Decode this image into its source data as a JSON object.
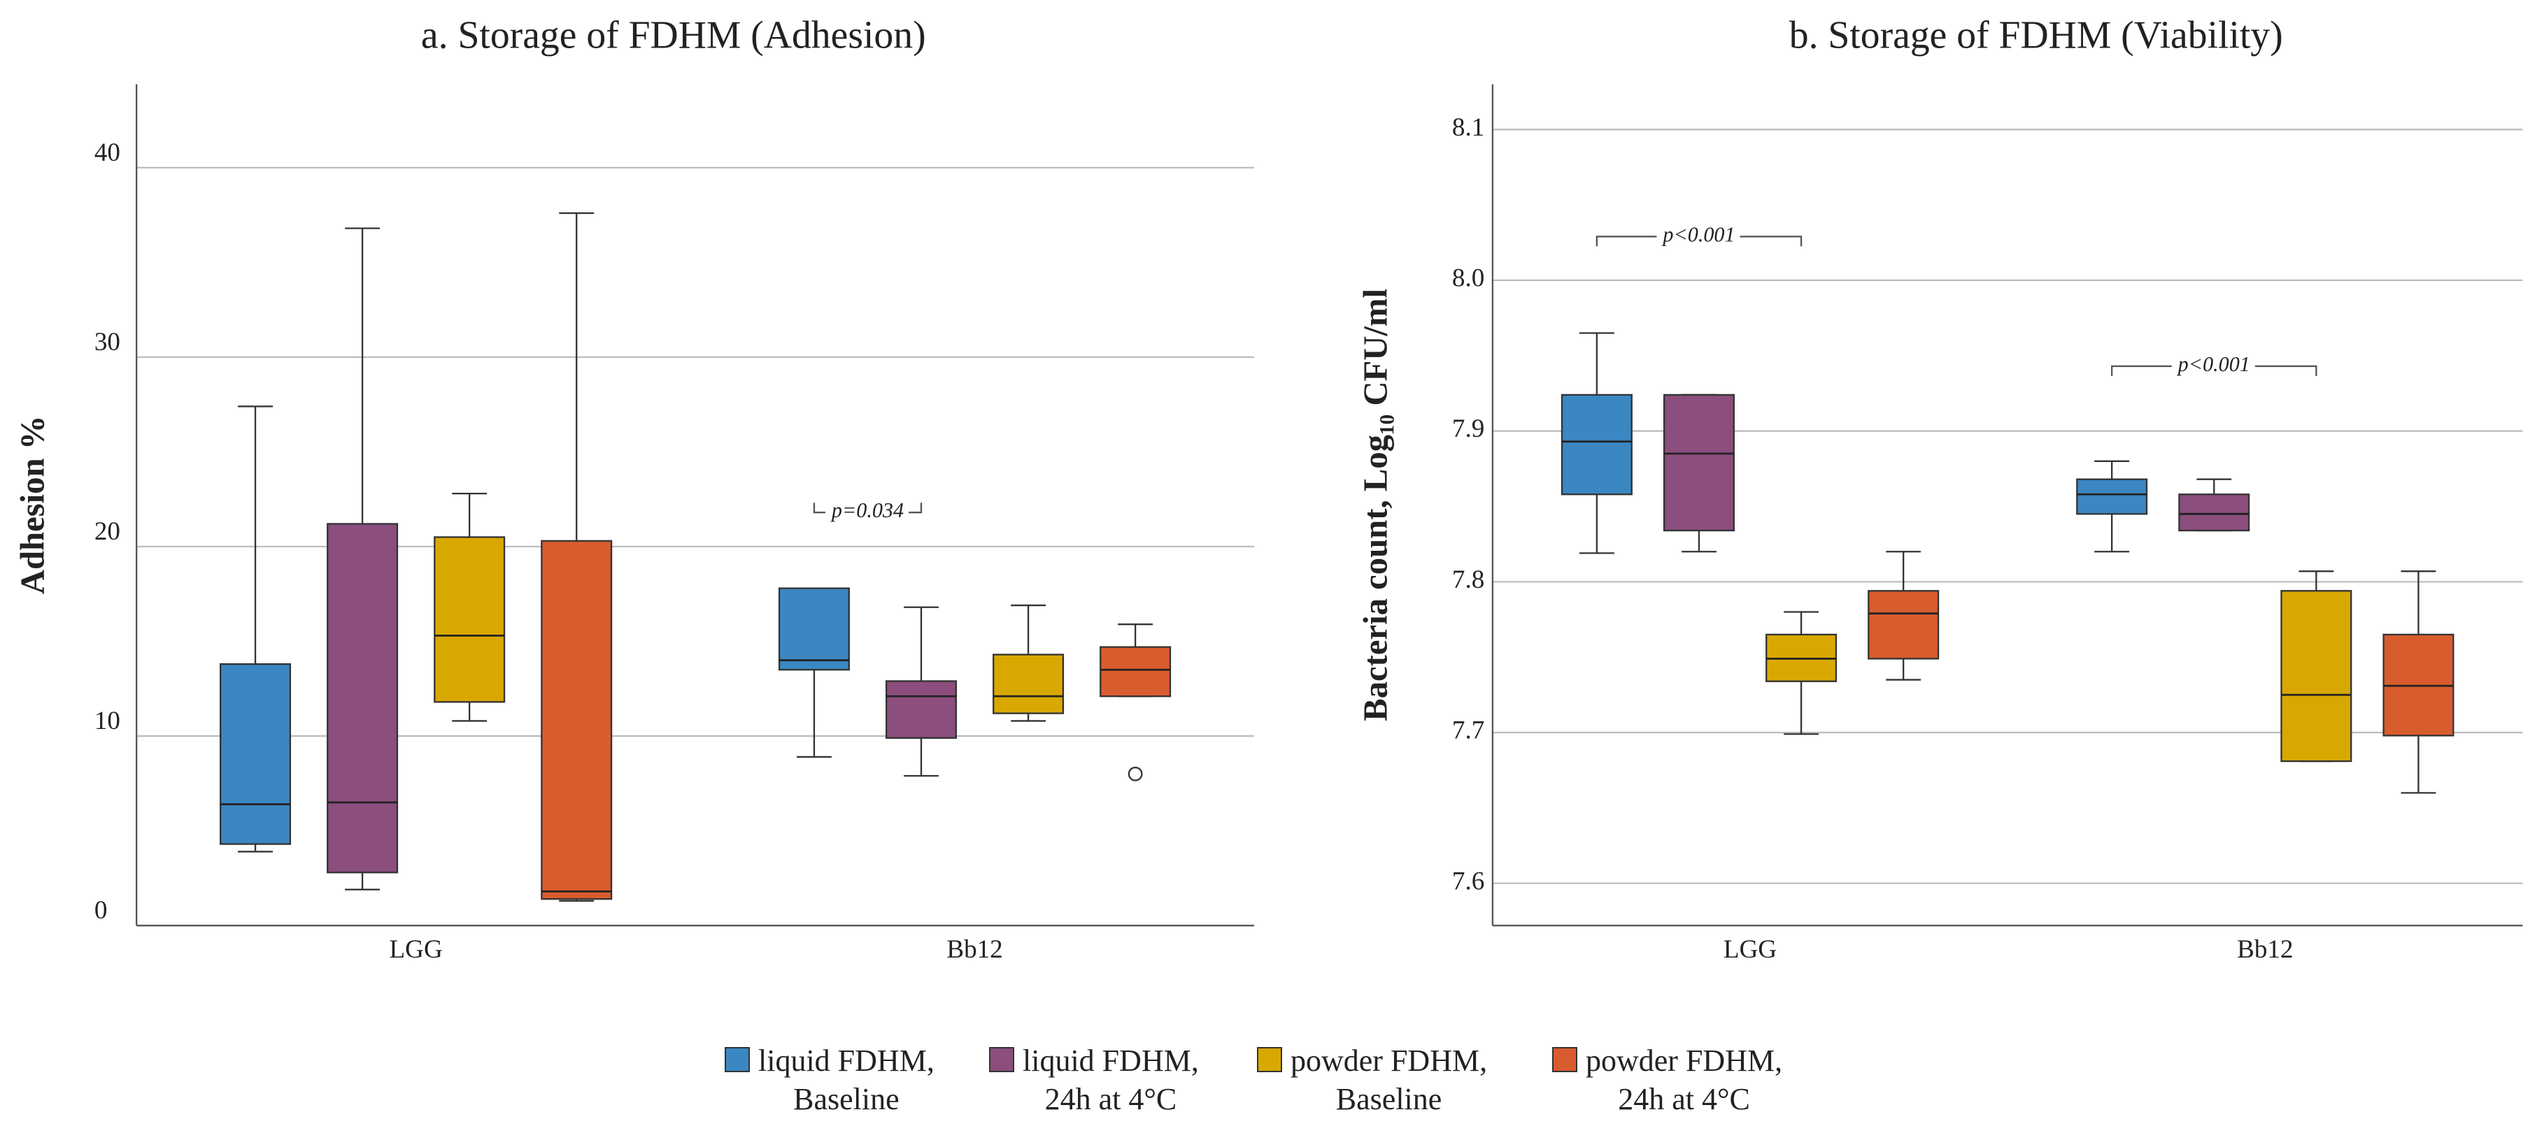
{
  "chart_data": [
    {
      "type": "box",
      "title": "a. Storage of FDHM (Adhesion)",
      "y_label": "Adhesion %",
      "categories": [
        "LGG",
        "Bb12"
      ],
      "ylim": [
        0,
        44.4
      ],
      "yticks": [
        0,
        10,
        20,
        30,
        40
      ],
      "grid": true,
      "series": [
        {
          "name": "liquid FDHM,\nBaseline",
          "color": "#3a87c2",
          "boxes": [
            {
              "min": 3.9,
              "q1": 4.3,
              "median": 6.4,
              "q3": 13.8,
              "max": 27.4,
              "outliers": []
            },
            {
              "min": 8.9,
              "q1": 13.5,
              "median": 14.0,
              "q3": 17.8,
              "max": 17.8,
              "outliers": []
            }
          ]
        },
        {
          "name": "liquid FDHM,\n24h at 4°C",
          "color": "#8b4e7d",
          "boxes": [
            {
              "min": 1.9,
              "q1": 2.8,
              "median": 6.5,
              "q3": 21.2,
              "max": 36.8,
              "outliers": []
            },
            {
              "min": 7.9,
              "q1": 9.9,
              "median": 12.1,
              "q3": 12.9,
              "max": 16.8,
              "outliers": []
            }
          ]
        },
        {
          "name": "powder FDHM,\nBaseline",
          "color": "#d9a800",
          "boxes": [
            {
              "min": 10.8,
              "q1": 11.8,
              "median": 15.3,
              "q3": 20.5,
              "max": 22.8,
              "outliers": []
            },
            {
              "min": 10.8,
              "q1": 11.2,
              "median": 12.1,
              "q3": 14.3,
              "max": 16.9,
              "outliers": []
            }
          ]
        },
        {
          "name": "powder FDHM,\n24h at 4°C",
          "color": "#d95c2e",
          "boxes": [
            {
              "min": 1.3,
              "q1": 1.4,
              "median": 1.8,
              "q3": 20.3,
              "max": 37.6,
              "outliers": []
            },
            {
              "min": 12.1,
              "q1": 12.1,
              "median": 13.5,
              "q3": 14.7,
              "max": 15.9,
              "outliers": [
                8.0
              ]
            }
          ]
        }
      ],
      "annotations": [
        {
          "text": "p=0.034",
          "category": "Bb12",
          "y": 21.8
        }
      ]
    },
    {
      "type": "box",
      "title": "b. Storage of FDHM (Viability)",
      "y_label": "Bacteria count, Log₁₀ CFU/ml",
      "categories": [
        "LGG",
        "Bb12"
      ],
      "ylim": [
        7.572,
        8.13
      ],
      "yticks": [
        7.6,
        7.7,
        7.8,
        7.9,
        {
          "value": 8.0,
          "label": "8.0"
        },
        8.1
      ],
      "grid": true,
      "series": [
        {
          "color": "#3a87c2",
          "boxes": [
            {
              "min": 7.819,
              "q1": 7.858,
              "median": 7.893,
              "q3": 7.924,
              "max": 7.965,
              "outliers": []
            },
            {
              "min": 7.82,
              "q1": 7.845,
              "median": 7.858,
              "q3": 7.868,
              "max": 7.88,
              "outliers": []
            }
          ]
        },
        {
          "color": "#8b4e7d",
          "boxes": [
            {
              "min": 7.82,
              "q1": 7.834,
              "median": 7.885,
              "q3": 7.924,
              "max": 7.924,
              "outliers": []
            },
            {
              "min": 7.834,
              "q1": 7.834,
              "median": 7.845,
              "q3": 7.858,
              "max": 7.868,
              "outliers": []
            }
          ]
        },
        {
          "color": "#d9a800",
          "boxes": [
            {
              "min": 7.699,
              "q1": 7.734,
              "median": 7.749,
              "q3": 7.765,
              "max": 7.78,
              "outliers": []
            },
            {
              "min": 7.681,
              "q1": 7.681,
              "median": 7.725,
              "q3": 7.794,
              "max": 7.807,
              "outliers": []
            }
          ]
        },
        {
          "color": "#d95c2e",
          "boxes": [
            {
              "min": 7.735,
              "q1": 7.749,
              "median": 7.779,
              "q3": 7.794,
              "max": 7.82,
              "outliers": []
            },
            {
              "min": 7.66,
              "q1": 7.698,
              "median": 7.731,
              "q3": 7.765,
              "max": 7.807,
              "outliers": []
            }
          ]
        }
      ],
      "annotations": [
        {
          "text": "p<0.001",
          "category": "LGG",
          "y": 8.029
        },
        {
          "text": "p<0.001",
          "category": "Bb12",
          "y": 7.943
        }
      ]
    }
  ]
}
